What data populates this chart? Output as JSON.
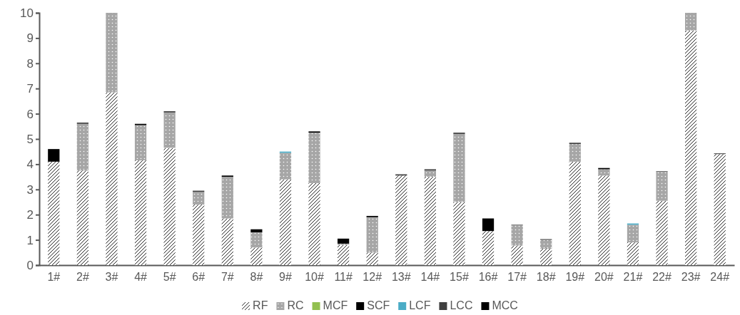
{
  "chart_data": {
    "type": "bar",
    "stacked": true,
    "categories": [
      "1#",
      "2#",
      "3#",
      "4#",
      "5#",
      "6#",
      "7#",
      "8#",
      "9#",
      "10#",
      "11#",
      "12#",
      "13#",
      "14#",
      "15#",
      "16#",
      "17#",
      "18#",
      "19#",
      "20#",
      "21#",
      "22#",
      "23#",
      "24#"
    ],
    "series": [
      {
        "name": "RF",
        "color": "#262626",
        "values": [
          4.1,
          3.75,
          6.85,
          4.15,
          4.65,
          2.4,
          1.85,
          0.7,
          3.4,
          3.25,
          0.8,
          0.5,
          3.55,
          3.5,
          2.5,
          1.35,
          0.78,
          0.65,
          4.1,
          3.55,
          0.9,
          2.55,
          9.3,
          4.4
        ]
      },
      {
        "name": "RC",
        "color": "#a6a6a6",
        "values": [
          0,
          1.85,
          3.15,
          1.4,
          1.4,
          0.5,
          1.65,
          0.6,
          1.05,
          2.0,
          0.05,
          1.4,
          0,
          0.25,
          2.7,
          0,
          0.8,
          0.35,
          0.7,
          0.25,
          0.7,
          1.15,
          0.7,
          0
        ]
      },
      {
        "name": "MCF",
        "color": "#92c050",
        "values": [
          0,
          0,
          0,
          0,
          0,
          0,
          0,
          0,
          0,
          0,
          0,
          0,
          0,
          0,
          0,
          0,
          0,
          0,
          0,
          0,
          0,
          0,
          0,
          0
        ]
      },
      {
        "name": "SCF",
        "color": "#000000",
        "values": [
          0,
          0,
          0,
          0.05,
          0,
          0,
          0.05,
          0,
          0,
          0.05,
          0,
          0.05,
          0,
          0,
          0,
          0,
          0,
          0,
          0,
          0.05,
          0,
          0,
          0,
          0
        ]
      },
      {
        "name": "LCF",
        "color": "#4bacc6",
        "values": [
          0,
          0,
          0,
          0,
          0,
          0,
          0,
          0,
          0.05,
          0,
          0,
          0,
          0,
          0,
          0,
          0,
          0,
          0,
          0,
          0,
          0.05,
          0,
          0,
          0
        ]
      },
      {
        "name": "LCC",
        "color": "#404040",
        "values": [
          0,
          0.05,
          0,
          0,
          0.05,
          0.05,
          0,
          0,
          0,
          0,
          0,
          0,
          0.05,
          0.05,
          0.05,
          0,
          0.02,
          0.03,
          0.05,
          0,
          0,
          0.02,
          0,
          0.03
        ]
      },
      {
        "name": "MCC",
        "color": "#000000",
        "values": [
          0.5,
          0,
          0,
          0,
          0,
          0,
          0,
          0.12,
          0,
          0,
          0.2,
          0,
          0,
          0,
          0,
          0.5,
          0,
          0,
          0,
          0,
          0,
          0,
          0,
          0
        ]
      }
    ],
    "ylim": [
      0,
      10
    ],
    "yticks": [
      0,
      1,
      2,
      3,
      4,
      5,
      6,
      7,
      8,
      9,
      10
    ],
    "grid": false,
    "legend": "bottom"
  }
}
